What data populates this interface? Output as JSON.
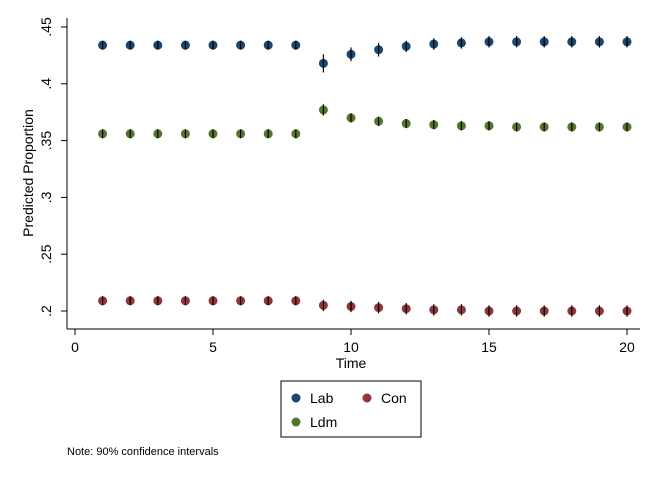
{
  "chart_data": {
    "type": "scatter",
    "title": "",
    "xlabel": "Time",
    "ylabel": "Predicted Proportion",
    "xlim": [
      0,
      20
    ],
    "ylim": [
      0.2,
      0.45
    ],
    "xticks": [
      0,
      5,
      10,
      15,
      20
    ],
    "yticks": [
      0.2,
      0.25,
      0.3,
      0.35,
      0.4,
      0.45
    ],
    "ytick_labels": [
      ".2",
      ".25",
      ".3",
      ".35",
      ".4",
      ".45"
    ],
    "grid": false,
    "legend_position": "bottom",
    "note": "Note: 90% confidence intervals",
    "x": [
      1,
      2,
      3,
      4,
      5,
      6,
      7,
      8,
      9,
      10,
      11,
      12,
      13,
      14,
      15,
      16,
      17,
      18,
      19,
      20
    ],
    "series": [
      {
        "name": "Lab",
        "color": "#1a476f",
        "values": [
          0.434,
          0.434,
          0.434,
          0.434,
          0.434,
          0.434,
          0.434,
          0.434,
          0.418,
          0.426,
          0.43,
          0.433,
          0.435,
          0.436,
          0.437,
          0.437,
          0.437,
          0.437,
          0.437,
          0.437
        ],
        "ci_half": [
          0.002,
          0.002,
          0.002,
          0.002,
          0.002,
          0.002,
          0.002,
          0.002,
          0.008,
          0.006,
          0.006,
          0.005,
          0.005,
          0.005,
          0.005,
          0.005,
          0.005,
          0.005,
          0.005,
          0.005
        ]
      },
      {
        "name": "Con",
        "color": "#90353b",
        "values": [
          0.209,
          0.209,
          0.209,
          0.209,
          0.209,
          0.209,
          0.209,
          0.209,
          0.205,
          0.204,
          0.203,
          0.202,
          0.201,
          0.201,
          0.2,
          0.2,
          0.2,
          0.2,
          0.2,
          0.2
        ],
        "ci_half": [
          0.002,
          0.002,
          0.002,
          0.002,
          0.002,
          0.002,
          0.002,
          0.002,
          0.005,
          0.005,
          0.005,
          0.005,
          0.005,
          0.005,
          0.005,
          0.005,
          0.005,
          0.005,
          0.005,
          0.005
        ]
      },
      {
        "name": "Ldm",
        "color": "#55752f",
        "values": [
          0.356,
          0.356,
          0.356,
          0.356,
          0.356,
          0.356,
          0.356,
          0.356,
          0.377,
          0.37,
          0.367,
          0.365,
          0.364,
          0.363,
          0.363,
          0.362,
          0.362,
          0.362,
          0.362,
          0.362
        ],
        "ci_half": [
          0.002,
          0.002,
          0.002,
          0.002,
          0.002,
          0.002,
          0.002,
          0.002,
          0.005,
          0.004,
          0.004,
          0.004,
          0.004,
          0.004,
          0.004,
          0.004,
          0.004,
          0.004,
          0.004,
          0.004
        ]
      }
    ]
  }
}
